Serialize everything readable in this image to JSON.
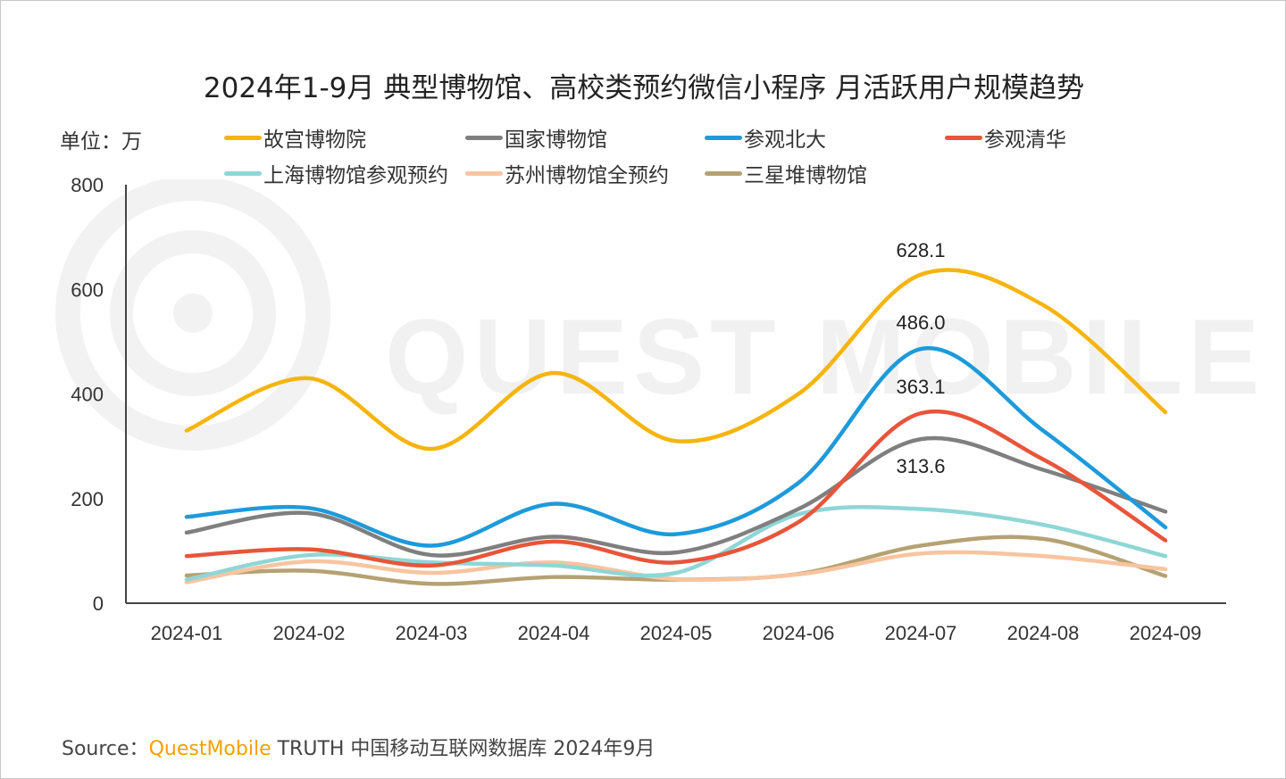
{
  "colors": {
    "gugong": "#F6B40F",
    "guojia": "#7F7F7F",
    "beida": "#1E9ADB",
    "qinghua": "#E8553A",
    "shanghai": "#8FD6D6",
    "suzhou": "#F8C4A0",
    "sanxingdui": "#B5A273"
  },
  "chart_data": {
    "type": "line",
    "title": "2024年1-9月 典型博物馆、高校类预约微信小程序 月活跃用户规模趋势",
    "unit_label": "单位：万",
    "ylim": [
      0,
      800
    ],
    "yticks": [
      "800",
      "600",
      "400",
      "200",
      "0"
    ],
    "ytick_values": [
      800,
      600,
      400,
      200,
      0
    ],
    "categories": [
      "2024-01",
      "2024-02",
      "2024-03",
      "2024-04",
      "2024-05",
      "2024-06",
      "2024-07",
      "2024-08",
      "2024-09"
    ],
    "series": [
      {
        "key": "gugong",
        "name": "故宫博物院",
        "values": [
          330,
          430,
          295,
          440,
          310,
          400,
          628.1,
          570,
          365
        ]
      },
      {
        "key": "guojia",
        "name": "国家博物馆",
        "values": [
          135,
          172,
          92,
          127,
          97,
          180,
          313.6,
          255,
          175
        ]
      },
      {
        "key": "beida",
        "name": "参观北大",
        "values": [
          165,
          182,
          110,
          190,
          132,
          230,
          486.0,
          330,
          145
        ]
      },
      {
        "key": "qinghua",
        "name": "参观清华",
        "values": [
          90,
          103,
          72,
          118,
          78,
          155,
          363.1,
          275,
          120
        ]
      },
      {
        "key": "shanghai",
        "name": "上海博物馆参观预约",
        "values": [
          45,
          92,
          78,
          72,
          58,
          170,
          180,
          150,
          90
        ]
      },
      {
        "key": "suzhou",
        "name": "苏州博物馆全预约",
        "values": [
          40,
          80,
          58,
          78,
          46,
          55,
          95,
          90,
          65
        ]
      },
      {
        "key": "sanxingdui",
        "name": "三星堆博物馆",
        "values": [
          53,
          62,
          37,
          50,
          45,
          56,
          110,
          123,
          52
        ]
      }
    ],
    "annotations": [
      {
        "series": "gugong",
        "category": "2024-07",
        "text": "628.1"
      },
      {
        "series": "beida",
        "category": "2024-07",
        "text": "486.0"
      },
      {
        "series": "qinghua",
        "category": "2024-07",
        "text": "363.1"
      },
      {
        "series": "guojia",
        "category": "2024-07",
        "text": "313.6"
      }
    ]
  },
  "legend": {
    "items": [
      "故宫博物院",
      "国家博物馆",
      "参观北大",
      "参观清华",
      "上海博物馆参观预约",
      "苏州博物馆全预约",
      "三星堆博物馆"
    ]
  },
  "watermark": "QUEST MOBILE",
  "source": {
    "prefix": "Source：",
    "brand": "QuestMobile",
    "rest": " TRUTH 中国移动互联网数据库 2024年9月"
  }
}
